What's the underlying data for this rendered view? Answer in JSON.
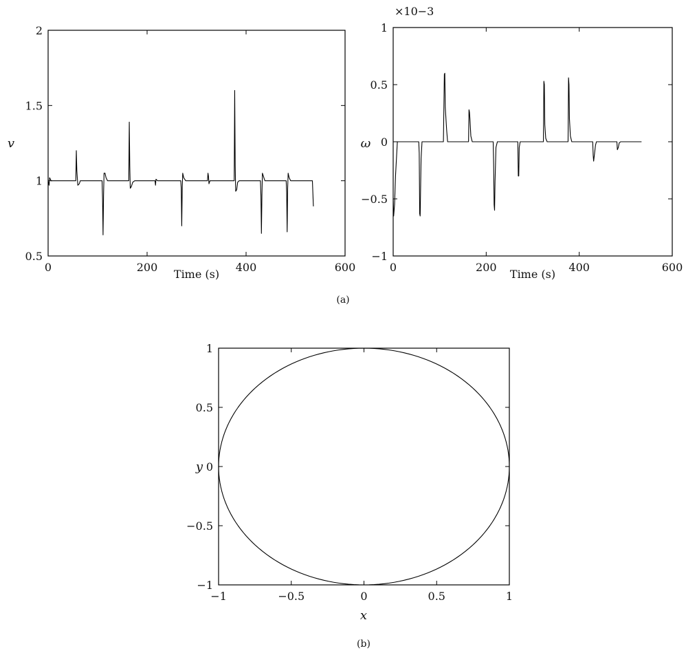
{
  "chart_data": [
    {
      "type": "line",
      "panel": "(a)",
      "xlabel": "Time (s)",
      "ylabel": "v",
      "xlim": [
        0,
        600
      ],
      "ylim": [
        0.5,
        2
      ],
      "xticks": [
        "0",
        "200",
        "400",
        "600"
      ],
      "yticks": [
        "0.5",
        "1",
        "1.5",
        "2"
      ],
      "grid": false,
      "series": [
        {
          "points": [
            [
              0,
              1.0
            ],
            [
              2,
              0.97
            ],
            [
              3,
              1.02
            ],
            [
              6,
              1.0
            ],
            [
              55,
              1.0
            ],
            [
              56,
              1.0
            ],
            [
              57,
              1.2
            ],
            [
              58,
              1.07
            ],
            [
              59,
              1.02
            ],
            [
              60,
              0.97
            ],
            [
              63,
              0.98
            ],
            [
              65,
              1.0
            ],
            [
              108,
              1.0
            ],
            [
              109,
              1.0
            ],
            [
              110,
              0.88
            ],
            [
              111,
              0.64
            ],
            [
              112,
              0.9
            ],
            [
              113,
              1.05
            ],
            [
              115,
              1.05
            ],
            [
              117,
              1.02
            ],
            [
              120,
              1.0
            ],
            [
              162,
              1.0
            ],
            [
              163,
              1.0
            ],
            [
              164,
              1.39
            ],
            [
              165,
              1.1
            ],
            [
              166,
              0.95
            ],
            [
              168,
              0.96
            ],
            [
              171,
              0.99
            ],
            [
              175,
              1.0
            ],
            [
              216,
              1.0
            ],
            [
              217,
              0.97
            ],
            [
              218,
              1.01
            ],
            [
              221,
              1.0
            ],
            [
              268,
              1.0
            ],
            [
              269,
              0.95
            ],
            [
              270,
              0.7
            ],
            [
              271,
              0.95
            ],
            [
              272,
              1.05
            ],
            [
              274,
              1.02
            ],
            [
              278,
              1.0
            ],
            [
              322,
              1.0
            ],
            [
              323,
              1.05
            ],
            [
              324,
              1.03
            ],
            [
              325,
              0.98
            ],
            [
              327,
              1.0
            ],
            [
              376,
              1.0
            ],
            [
              377,
              1.6
            ],
            [
              378,
              1.1
            ],
            [
              379,
              0.93
            ],
            [
              381,
              0.94
            ],
            [
              383,
              0.99
            ],
            [
              386,
              1.0
            ],
            [
              429,
              1.0
            ],
            [
              430,
              0.9
            ],
            [
              431,
              0.65
            ],
            [
              432,
              0.9
            ],
            [
              433,
              1.05
            ],
            [
              435,
              1.03
            ],
            [
              438,
              1.0
            ],
            [
              481,
              1.0
            ],
            [
              482,
              0.92
            ],
            [
              483,
              0.66
            ],
            [
              484,
              0.95
            ],
            [
              485,
              1.05
            ],
            [
              487,
              1.02
            ],
            [
              490,
              1.0
            ],
            [
              534,
              1.0
            ],
            [
              536,
              0.83
            ]
          ]
        }
      ]
    },
    {
      "type": "line",
      "panel": "(a)",
      "xlabel": "Time (s)",
      "ylabel": "ω",
      "scale_label": "×10−3",
      "xlim": [
        0,
        600
      ],
      "ylim": [
        -1,
        1
      ],
      "xticks": [
        "0",
        "200",
        "400",
        "600"
      ],
      "yticks": [
        "−1",
        "−0.5",
        "0",
        "0.5",
        "1"
      ],
      "grid": false,
      "series": [
        {
          "points": [
            [
              0,
              -0.5
            ],
            [
              1,
              -0.65
            ],
            [
              3,
              -0.55
            ],
            [
              5,
              -0.3
            ],
            [
              7,
              -0.15
            ],
            [
              9,
              0.0
            ],
            [
              55,
              0.0
            ],
            [
              56,
              -0.1
            ],
            [
              57,
              -0.63
            ],
            [
              58,
              -0.65
            ],
            [
              60,
              -0.15
            ],
            [
              62,
              0.0
            ],
            [
              108,
              0.0
            ],
            [
              109,
              0.3
            ],
            [
              110,
              0.59
            ],
            [
              111,
              0.6
            ],
            [
              112,
              0.3
            ],
            [
              115,
              0.1
            ],
            [
              117,
              0.0
            ],
            [
              162,
              0.0
            ],
            [
              163,
              0.28
            ],
            [
              164,
              0.26
            ],
            [
              165,
              0.2
            ],
            [
              167,
              0.05
            ],
            [
              170,
              0.0
            ],
            [
              215,
              0.0
            ],
            [
              216,
              -0.2
            ],
            [
              217,
              -0.55
            ],
            [
              218,
              -0.6
            ],
            [
              219,
              -0.35
            ],
            [
              221,
              -0.05
            ],
            [
              224,
              0.0
            ],
            [
              268,
              0.0
            ],
            [
              269,
              -0.3
            ],
            [
              270,
              -0.3
            ],
            [
              271,
              -0.05
            ],
            [
              273,
              0.0
            ],
            [
              323,
              0.0
            ],
            [
              324,
              0.53
            ],
            [
              325,
              0.5
            ],
            [
              326,
              0.15
            ],
            [
              328,
              0.03
            ],
            [
              331,
              0.0
            ],
            [
              376,
              0.0
            ],
            [
              377,
              0.56
            ],
            [
              378,
              0.5
            ],
            [
              379,
              0.2
            ],
            [
              381,
              0.05
            ],
            [
              384,
              0.0
            ],
            [
              429,
              0.0
            ],
            [
              430,
              -0.12
            ],
            [
              431,
              -0.17
            ],
            [
              433,
              -0.1
            ],
            [
              435,
              -0.03
            ],
            [
              437,
              0.0
            ],
            [
              481,
              0.0
            ],
            [
              482,
              -0.07
            ],
            [
              484,
              -0.05
            ],
            [
              486,
              -0.01
            ],
            [
              489,
              0.0
            ],
            [
              534,
              0.0
            ]
          ]
        }
      ]
    },
    {
      "type": "line",
      "panel": "(b)",
      "xlabel": "x",
      "ylabel": "y",
      "xlim": [
        -1,
        1
      ],
      "ylim": [
        -1,
        1
      ],
      "xticks": [
        "−1",
        "−0.5",
        "0",
        "0.5",
        "1"
      ],
      "yticks": [
        "−1",
        "−0.5",
        "0",
        "0.5",
        "1"
      ],
      "grid": false,
      "series": [
        {
          "shape": "unit-circle",
          "x_radius": 1,
          "y_radius": 1
        }
      ]
    }
  ],
  "captions": {
    "a": "(a)",
    "b": "(b)"
  }
}
